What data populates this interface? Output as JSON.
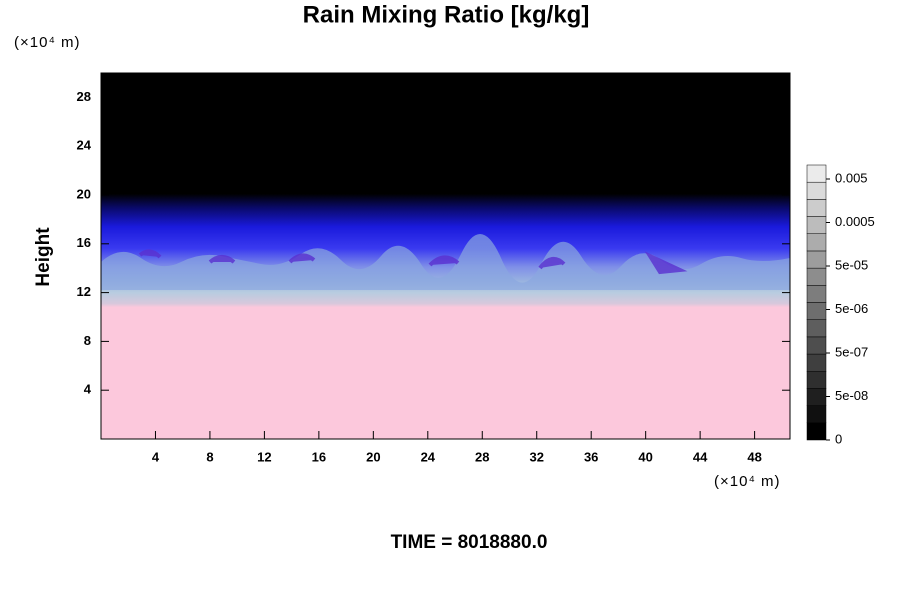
{
  "chart_data": {
    "type": "contour",
    "title": "Rain Mixing Ratio [kg/kg]",
    "y_unit": "(×10⁴ m)",
    "x_unit": "(×10⁴ m)",
    "ylabel": "Height",
    "footer": "TIME = 8018880.0",
    "xlim": [
      0,
      50.6
    ],
    "xticks": [
      4,
      8,
      12,
      16,
      20,
      24,
      28,
      32,
      36,
      40,
      44,
      48
    ],
    "ylim": [
      0,
      30
    ],
    "yticks": [
      4,
      8,
      12,
      16,
      20,
      24,
      28
    ],
    "colorbar_ticks": [
      {
        "value": 0.005,
        "label": "0.005"
      },
      {
        "value": 0.0005,
        "label": "0.0005"
      },
      {
        "value": 5e-05,
        "label": "5e-05"
      },
      {
        "value": 5e-06,
        "label": "5e-06"
      },
      {
        "value": 5e-07,
        "label": "5e-07"
      },
      {
        "value": 5e-08,
        "label": "5e-08"
      },
      0
    ]
  }
}
